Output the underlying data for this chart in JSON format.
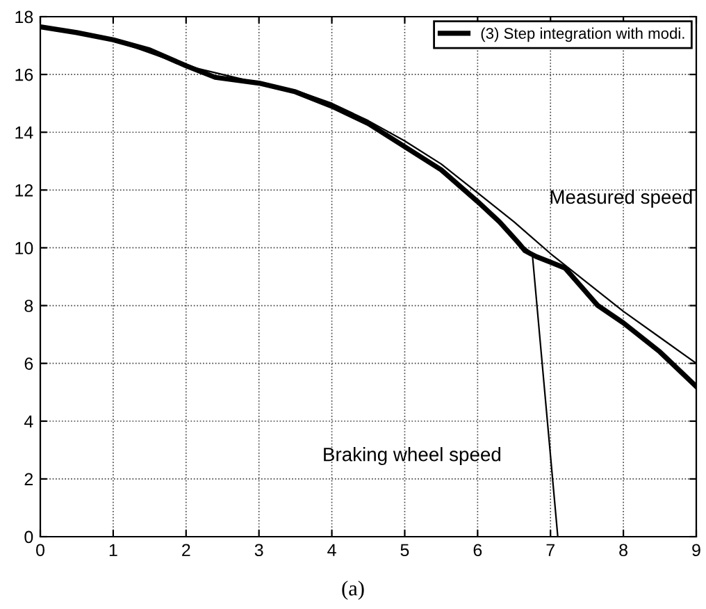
{
  "chart_data": {
    "type": "line",
    "x": [
      0,
      0.5,
      1,
      1.5,
      2,
      2.4,
      3,
      3.5,
      4,
      4.5,
      5,
      5.5,
      6,
      6.3,
      6.55,
      6.65,
      6.8,
      7.0,
      7.2,
      7.65,
      8,
      8.5,
      9
    ],
    "series": [
      {
        "name": "(3) Step integration with modi.",
        "color": "#000000",
        "values": [
          17.65,
          17.45,
          17.2,
          16.85,
          16.3,
          15.9,
          15.7,
          15.4,
          14.9,
          14.3,
          13.5,
          12.7,
          11.6,
          10.9,
          10.2,
          9.9,
          9.7,
          9.5,
          9.3,
          8.0,
          7.4,
          6.4,
          5.2
        ]
      },
      {
        "color": "#000000",
        "x": [
          0,
          1,
          2,
          3,
          3.5,
          4,
          4.5,
          5,
          5.5,
          6,
          6.5,
          7,
          7.5,
          8,
          8.5,
          9
        ],
        "values": [
          17.65,
          17.2,
          16.3,
          15.7,
          15.45,
          15.0,
          14.4,
          13.7,
          12.9,
          11.9,
          10.9,
          9.8,
          8.8,
          7.8,
          6.9,
          6.0
        ]
      },
      {
        "color": "#000000",
        "x": [
          6.6,
          6.75,
          7.1
        ],
        "values": [
          10.1,
          9.8,
          0
        ]
      }
    ],
    "xlim": [
      0,
      9
    ],
    "ylim": [
      0,
      18
    ],
    "xticks": [
      0,
      1,
      2,
      3,
      4,
      5,
      6,
      7,
      8,
      9
    ],
    "yticks": [
      0,
      2,
      4,
      6,
      8,
      10,
      12,
      14,
      16,
      18
    ],
    "grid": true,
    "legend": "top right",
    "annotations": [
      "Measured speed",
      "Braking wheel speed",
      "(a)"
    ]
  }
}
